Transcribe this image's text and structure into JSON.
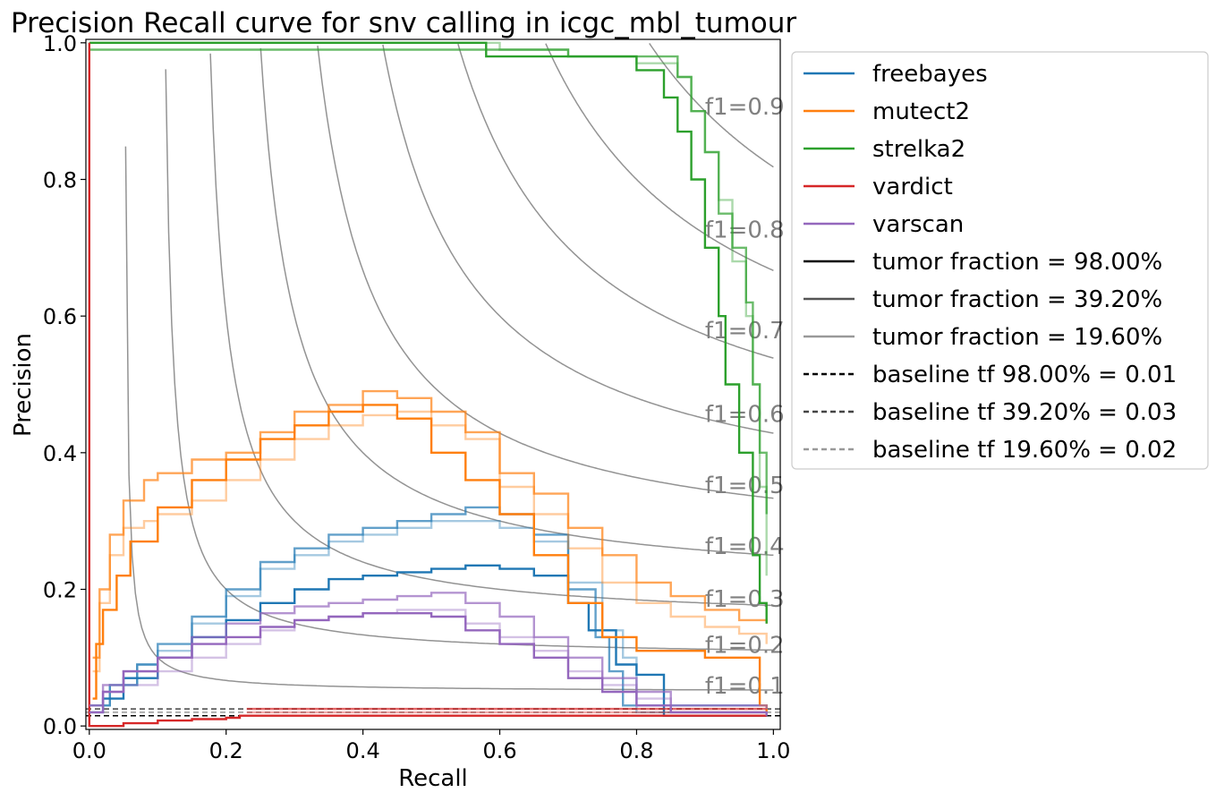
{
  "chart_data": {
    "type": "line",
    "title": "Precision Recall curve for snv calling in icgc_mbl_tumour",
    "xlabel": "Recall",
    "ylabel": "Precision",
    "xlim": [
      -0.005,
      1.01
    ],
    "ylim": [
      -0.005,
      1.005
    ],
    "x_ticks": [
      "0.0",
      "0.2",
      "0.4",
      "0.6",
      "0.8",
      "1.0"
    ],
    "y_ticks": [
      "0.0",
      "0.2",
      "0.4",
      "0.6",
      "0.8",
      "1.0"
    ],
    "grid": false,
    "legend_position": "outside upper right",
    "colors": {
      "freebayes": "#1f77b4",
      "mutect2": "#ff7f0e",
      "strelka2": "#2ca02c",
      "vardict": "#d62728",
      "varscan": "#9467bd",
      "iso_f1": "#808080"
    },
    "iso_f1_curves": [
      {
        "f1": 0.1,
        "label": "f1=0.1"
      },
      {
        "f1": 0.2,
        "label": "f1=0.2"
      },
      {
        "f1": 0.3,
        "label": "f1=0.3"
      },
      {
        "f1": 0.4,
        "label": "f1=0.4"
      },
      {
        "f1": 0.5,
        "label": "f1=0.5"
      },
      {
        "f1": 0.6,
        "label": "f1=0.6"
      },
      {
        "f1": 0.7,
        "label": "f1=0.7"
      },
      {
        "f1": 0.8,
        "label": "f1=0.8"
      },
      {
        "f1": 0.9,
        "label": "f1=0.9"
      }
    ],
    "baselines": [
      {
        "label": "baseline tf 98.00% = 0.01",
        "value": 0.015,
        "color": "#000000"
      },
      {
        "label": "baseline tf 39.20% = 0.03",
        "value": 0.025,
        "color": "#444444"
      },
      {
        "label": "baseline tf 19.60% = 0.02",
        "value": 0.02,
        "color": "#999999"
      }
    ],
    "series": [
      {
        "name": "freebayes",
        "tumor_fraction": "98.00%",
        "points": [
          [
            0,
            0.02
          ],
          [
            0.02,
            0.04
          ],
          [
            0.05,
            0.07
          ],
          [
            0.1,
            0.1
          ],
          [
            0.15,
            0.13
          ],
          [
            0.2,
            0.155
          ],
          [
            0.25,
            0.18
          ],
          [
            0.3,
            0.2
          ],
          [
            0.35,
            0.215
          ],
          [
            0.4,
            0.22
          ],
          [
            0.45,
            0.225
          ],
          [
            0.5,
            0.23
          ],
          [
            0.55,
            0.235
          ],
          [
            0.6,
            0.23
          ],
          [
            0.65,
            0.22
          ],
          [
            0.7,
            0.18
          ],
          [
            0.73,
            0.14
          ],
          [
            0.77,
            0.09
          ],
          [
            0.8,
            0.075
          ],
          [
            0.84,
            0.07
          ],
          [
            0.84,
            0.015
          ],
          [
            0.99,
            0.015
          ]
        ]
      },
      {
        "name": "freebayes",
        "tumor_fraction": "39.20%",
        "points": [
          [
            0,
            0.03
          ],
          [
            0.03,
            0.06
          ],
          [
            0.07,
            0.09
          ],
          [
            0.1,
            0.12
          ],
          [
            0.15,
            0.16
          ],
          [
            0.2,
            0.2
          ],
          [
            0.25,
            0.24
          ],
          [
            0.3,
            0.26
          ],
          [
            0.35,
            0.28
          ],
          [
            0.4,
            0.29
          ],
          [
            0.45,
            0.3
          ],
          [
            0.5,
            0.31
          ],
          [
            0.55,
            0.32
          ],
          [
            0.6,
            0.31
          ],
          [
            0.65,
            0.28
          ],
          [
            0.7,
            0.2
          ],
          [
            0.74,
            0.13
          ],
          [
            0.76,
            0.08
          ],
          [
            0.78,
            0.03
          ],
          [
            0.99,
            0.025
          ]
        ]
      },
      {
        "name": "freebayes",
        "tumor_fraction": "19.60%",
        "points": [
          [
            0,
            0.03
          ],
          [
            0.03,
            0.06
          ],
          [
            0.07,
            0.09
          ],
          [
            0.1,
            0.11
          ],
          [
            0.15,
            0.15
          ],
          [
            0.2,
            0.19
          ],
          [
            0.25,
            0.23
          ],
          [
            0.3,
            0.25
          ],
          [
            0.35,
            0.27
          ],
          [
            0.4,
            0.28
          ],
          [
            0.45,
            0.29
          ],
          [
            0.5,
            0.3
          ],
          [
            0.55,
            0.3
          ],
          [
            0.6,
            0.29
          ],
          [
            0.65,
            0.27
          ],
          [
            0.7,
            0.21
          ],
          [
            0.75,
            0.14
          ],
          [
            0.78,
            0.1
          ],
          [
            0.8,
            0.05
          ],
          [
            0.8,
            0.02
          ],
          [
            0.99,
            0.02
          ]
        ]
      },
      {
        "name": "mutect2",
        "tumor_fraction": "98.00%",
        "points": [
          [
            0.005,
            0.04
          ],
          [
            0.01,
            0.12
          ],
          [
            0.02,
            0.17
          ],
          [
            0.04,
            0.22
          ],
          [
            0.06,
            0.27
          ],
          [
            0.1,
            0.32
          ],
          [
            0.15,
            0.36
          ],
          [
            0.2,
            0.39
          ],
          [
            0.25,
            0.42
          ],
          [
            0.3,
            0.44
          ],
          [
            0.35,
            0.46
          ],
          [
            0.4,
            0.47
          ],
          [
            0.45,
            0.45
          ],
          [
            0.5,
            0.4
          ],
          [
            0.55,
            0.36
          ],
          [
            0.6,
            0.31
          ],
          [
            0.65,
            0.25
          ],
          [
            0.7,
            0.18
          ],
          [
            0.75,
            0.13
          ],
          [
            0.8,
            0.11
          ],
          [
            0.9,
            0.1
          ],
          [
            0.98,
            0.09
          ],
          [
            0.98,
            0.03
          ],
          [
            0.99,
            0.02
          ]
        ]
      },
      {
        "name": "mutect2",
        "tumor_fraction": "39.20%",
        "points": [
          [
            0.005,
            0.1
          ],
          [
            0.015,
            0.2
          ],
          [
            0.03,
            0.28
          ],
          [
            0.05,
            0.33
          ],
          [
            0.08,
            0.36
          ],
          [
            0.1,
            0.37
          ],
          [
            0.15,
            0.39
          ],
          [
            0.2,
            0.4
          ],
          [
            0.25,
            0.43
          ],
          [
            0.3,
            0.46
          ],
          [
            0.35,
            0.47
          ],
          [
            0.4,
            0.49
          ],
          [
            0.45,
            0.48
          ],
          [
            0.5,
            0.46
          ],
          [
            0.55,
            0.43
          ],
          [
            0.6,
            0.37
          ],
          [
            0.65,
            0.34
          ],
          [
            0.7,
            0.29
          ],
          [
            0.75,
            0.25
          ],
          [
            0.8,
            0.21
          ],
          [
            0.85,
            0.19
          ],
          [
            0.9,
            0.17
          ],
          [
            0.95,
            0.155
          ],
          [
            0.99,
            0.15
          ]
        ]
      },
      {
        "name": "mutect2",
        "tumor_fraction": "19.60%",
        "points": [
          [
            0.005,
            0.08
          ],
          [
            0.015,
            0.18
          ],
          [
            0.03,
            0.25
          ],
          [
            0.05,
            0.29
          ],
          [
            0.08,
            0.3
          ],
          [
            0.1,
            0.31
          ],
          [
            0.15,
            0.33
          ],
          [
            0.2,
            0.36
          ],
          [
            0.25,
            0.39
          ],
          [
            0.3,
            0.42
          ],
          [
            0.35,
            0.44
          ],
          [
            0.4,
            0.455
          ],
          [
            0.45,
            0.46
          ],
          [
            0.5,
            0.44
          ],
          [
            0.55,
            0.42
          ],
          [
            0.6,
            0.35
          ],
          [
            0.65,
            0.31
          ],
          [
            0.7,
            0.26
          ],
          [
            0.75,
            0.21
          ],
          [
            0.8,
            0.18
          ],
          [
            0.85,
            0.16
          ],
          [
            0.9,
            0.145
          ],
          [
            0.95,
            0.135
          ],
          [
            0.99,
            0.12
          ]
        ]
      },
      {
        "name": "strelka2",
        "tumor_fraction": "98.00%",
        "points": [
          [
            0,
            1.0
          ],
          [
            0.3,
            1.0
          ],
          [
            0.5,
            1.0
          ],
          [
            0.58,
            0.98
          ],
          [
            0.7,
            0.98
          ],
          [
            0.8,
            0.96
          ],
          [
            0.84,
            0.92
          ],
          [
            0.86,
            0.87
          ],
          [
            0.88,
            0.8
          ],
          [
            0.9,
            0.7
          ],
          [
            0.92,
            0.6
          ],
          [
            0.93,
            0.5
          ],
          [
            0.95,
            0.4
          ],
          [
            0.97,
            0.25
          ],
          [
            0.98,
            0.18
          ],
          [
            0.99,
            0.15
          ]
        ]
      },
      {
        "name": "strelka2",
        "tumor_fraction": "39.20%",
        "points": [
          [
            0,
            0.99
          ],
          [
            0.3,
            0.99
          ],
          [
            0.5,
            0.99
          ],
          [
            0.6,
            0.99
          ],
          [
            0.7,
            0.98
          ],
          [
            0.8,
            0.98
          ],
          [
            0.86,
            0.95
          ],
          [
            0.88,
            0.9
          ],
          [
            0.9,
            0.84
          ],
          [
            0.92,
            0.75
          ],
          [
            0.94,
            0.7
          ],
          [
            0.96,
            0.62
          ],
          [
            0.97,
            0.5
          ],
          [
            0.98,
            0.4
          ],
          [
            0.99,
            0.31
          ]
        ]
      },
      {
        "name": "strelka2",
        "tumor_fraction": "19.60%",
        "points": [
          [
            0,
            1.0
          ],
          [
            0.3,
            1.0
          ],
          [
            0.5,
            1.0
          ],
          [
            0.6,
            0.99
          ],
          [
            0.7,
            0.98
          ],
          [
            0.8,
            0.97
          ],
          [
            0.86,
            0.95
          ],
          [
            0.88,
            0.9
          ],
          [
            0.9,
            0.84
          ],
          [
            0.92,
            0.77
          ],
          [
            0.94,
            0.68
          ],
          [
            0.96,
            0.6
          ],
          [
            0.97,
            0.5
          ],
          [
            0.98,
            0.35
          ],
          [
            0.99,
            0.22
          ]
        ]
      },
      {
        "name": "vardict",
        "tumor_fraction": "98.00%",
        "points": [
          [
            0,
            1.0
          ],
          [
            0,
            0.0
          ],
          [
            0.05,
            0.004
          ],
          [
            0.1,
            0.008
          ],
          [
            0.15,
            0.01
          ],
          [
            0.2,
            0.012
          ],
          [
            0.22,
            0.015
          ],
          [
            0.99,
            0.015
          ]
        ]
      },
      {
        "name": "vardict",
        "tumor_fraction": "39.20%",
        "points": [
          [
            0.23,
            0.025
          ],
          [
            0.99,
            0.025
          ]
        ]
      },
      {
        "name": "vardict",
        "tumor_fraction": "19.60%",
        "points": [
          [
            0.23,
            0.02
          ],
          [
            0.99,
            0.02
          ]
        ]
      },
      {
        "name": "varscan",
        "tumor_fraction": "98.00%",
        "points": [
          [
            0,
            0.02
          ],
          [
            0.02,
            0.05
          ],
          [
            0.05,
            0.08
          ],
          [
            0.1,
            0.1
          ],
          [
            0.15,
            0.12
          ],
          [
            0.2,
            0.13
          ],
          [
            0.25,
            0.145
          ],
          [
            0.3,
            0.155
          ],
          [
            0.35,
            0.16
          ],
          [
            0.4,
            0.165
          ],
          [
            0.45,
            0.165
          ],
          [
            0.5,
            0.16
          ],
          [
            0.55,
            0.14
          ],
          [
            0.6,
            0.12
          ],
          [
            0.65,
            0.1
          ],
          [
            0.7,
            0.07
          ],
          [
            0.75,
            0.05
          ],
          [
            0.8,
            0.03
          ],
          [
            0.85,
            0.02
          ],
          [
            0.99,
            0.015
          ]
        ]
      },
      {
        "name": "varscan",
        "tumor_fraction": "39.20%",
        "points": [
          [
            0,
            0.03
          ],
          [
            0.02,
            0.06
          ],
          [
            0.05,
            0.08
          ],
          [
            0.1,
            0.1
          ],
          [
            0.15,
            0.13
          ],
          [
            0.2,
            0.15
          ],
          [
            0.25,
            0.165
          ],
          [
            0.3,
            0.175
          ],
          [
            0.35,
            0.18
          ],
          [
            0.4,
            0.185
          ],
          [
            0.45,
            0.19
          ],
          [
            0.5,
            0.195
          ],
          [
            0.55,
            0.18
          ],
          [
            0.6,
            0.16
          ],
          [
            0.65,
            0.13
          ],
          [
            0.7,
            0.1
          ],
          [
            0.75,
            0.07
          ],
          [
            0.8,
            0.05
          ],
          [
            0.85,
            0.03
          ],
          [
            0.99,
            0.025
          ]
        ]
      },
      {
        "name": "varscan",
        "tumor_fraction": "19.60%",
        "points": [
          [
            0,
            0.03
          ],
          [
            0.02,
            0.05
          ],
          [
            0.05,
            0.06
          ],
          [
            0.1,
            0.08
          ],
          [
            0.15,
            0.1
          ],
          [
            0.2,
            0.12
          ],
          [
            0.25,
            0.14
          ],
          [
            0.3,
            0.155
          ],
          [
            0.35,
            0.16
          ],
          [
            0.4,
            0.165
          ],
          [
            0.45,
            0.17
          ],
          [
            0.5,
            0.17
          ],
          [
            0.55,
            0.15
          ],
          [
            0.6,
            0.13
          ],
          [
            0.65,
            0.11
          ],
          [
            0.7,
            0.08
          ],
          [
            0.75,
            0.06
          ],
          [
            0.8,
            0.04
          ],
          [
            0.85,
            0.02
          ],
          [
            0.99,
            0.02
          ]
        ]
      }
    ],
    "legend": [
      {
        "label": "freebayes",
        "color": "#1f77b4",
        "dash": "solid"
      },
      {
        "label": "mutect2",
        "color": "#ff7f0e",
        "dash": "solid"
      },
      {
        "label": "strelka2",
        "color": "#2ca02c",
        "dash": "solid"
      },
      {
        "label": "vardict",
        "color": "#d62728",
        "dash": "solid"
      },
      {
        "label": "varscan",
        "color": "#9467bd",
        "dash": "solid"
      },
      {
        "label": "tumor fraction = 98.00%",
        "color": "#000000",
        "dash": "solid"
      },
      {
        "label": "tumor fraction = 39.20%",
        "color": "#555555",
        "dash": "solid"
      },
      {
        "label": "tumor fraction = 19.60%",
        "color": "#999999",
        "dash": "solid"
      },
      {
        "label": "baseline tf 98.00% = 0.01",
        "color": "#000000",
        "dash": "dashed"
      },
      {
        "label": "baseline tf 39.20% = 0.03",
        "color": "#444444",
        "dash": "dashed"
      },
      {
        "label": "baseline tf 19.60% = 0.02",
        "color": "#999999",
        "dash": "dashed"
      }
    ]
  }
}
